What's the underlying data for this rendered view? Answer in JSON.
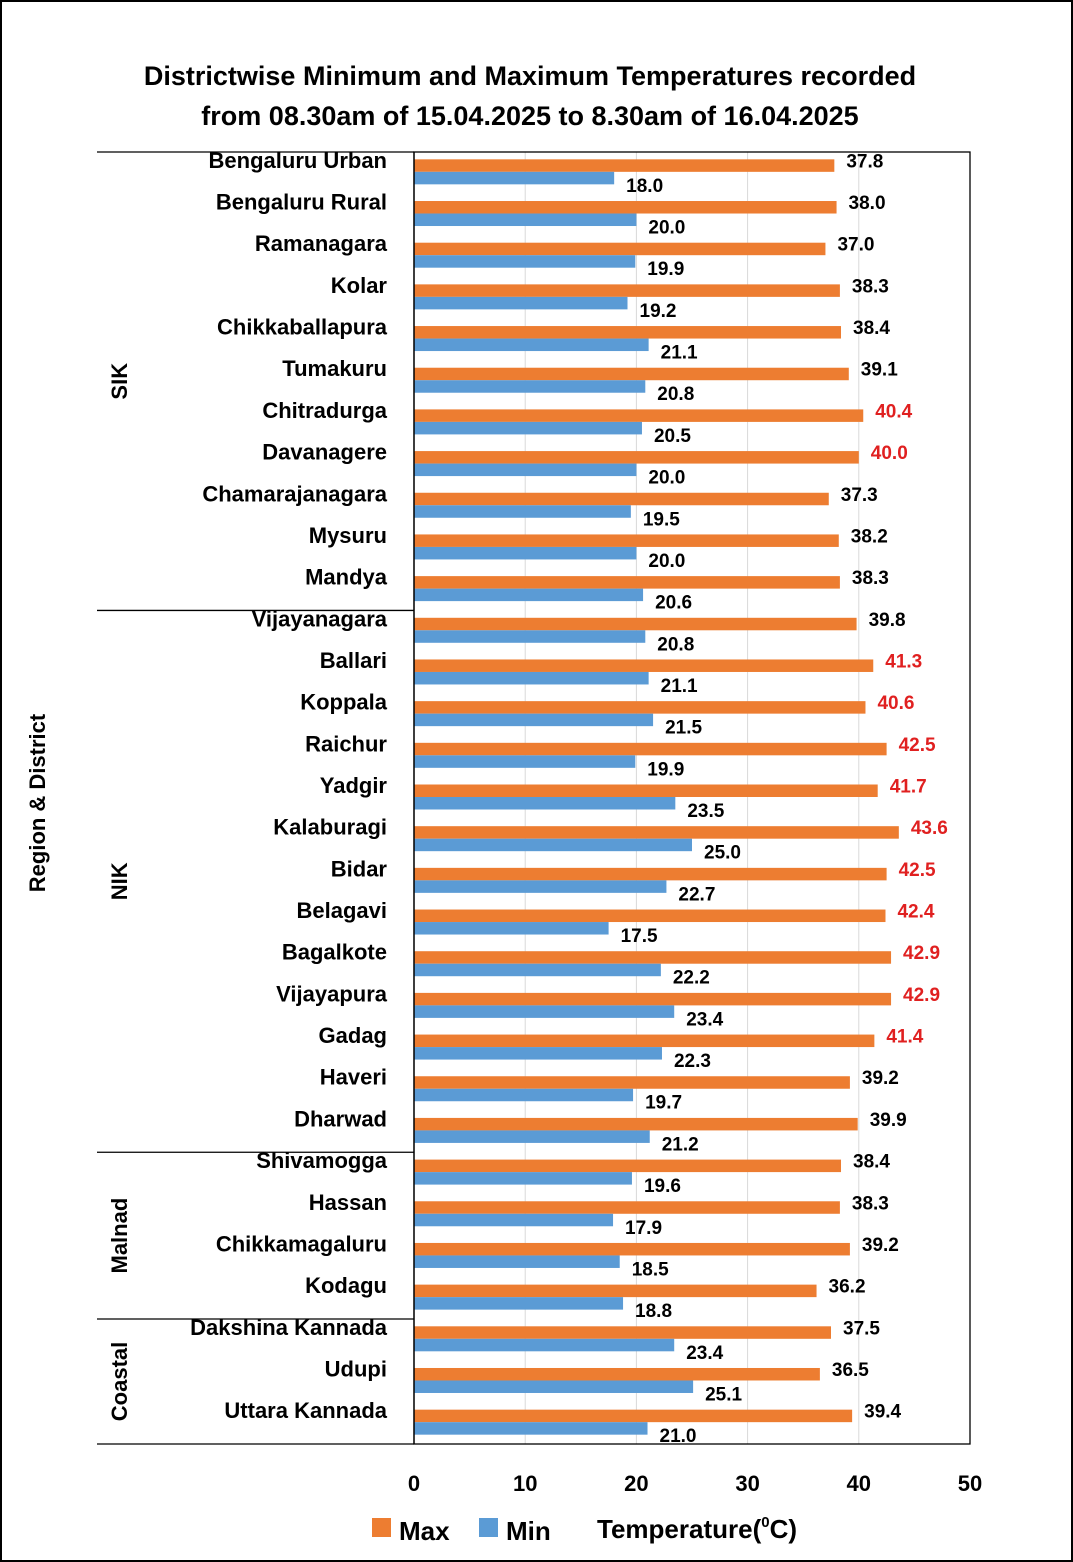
{
  "chart_data": {
    "type": "bar",
    "orientation": "horizontal",
    "title_line1": "Districtwise Minimum and Maximum Temperatures recorded",
    "title_line2": "from 08.30am of 15.04.2025 to 8.30am of 16.04.2025",
    "xlabel": "Temperature(⁰C)",
    "xlabel_main": "Temperature(",
    "xlabel_sup": "0",
    "xlabel_end": "C)",
    "ylabel": "Region & District",
    "xlim": [
      0,
      50
    ],
    "xticks": [
      0,
      10,
      20,
      30,
      40,
      50
    ],
    "grid": "vertical",
    "legend": {
      "placement": "bottom-left",
      "entries": [
        "Max",
        "Min"
      ]
    },
    "highlight_threshold": 40.0,
    "colors": {
      "max": "#ED7D31",
      "min": "#5B9BD5",
      "label_normal": "#000000",
      "label_highlight": "#E02020",
      "grid": "#D9D9D9"
    },
    "regions": [
      {
        "name": "SIK",
        "start": 0,
        "count": 11
      },
      {
        "name": "NIK",
        "start": 11,
        "count": 13
      },
      {
        "name": "Malnad",
        "start": 24,
        "count": 4
      },
      {
        "name": "Coastal",
        "start": 28,
        "count": 3
      }
    ],
    "categories": [
      "Bengaluru Urban",
      "Bengaluru Rural",
      "Ramanagara",
      "Kolar",
      "Chikkaballapura",
      "Tumakuru",
      "Chitradurga",
      "Davanagere",
      "Chamarajanagara",
      "Mysuru",
      "Mandya",
      "Vijayanagara",
      "Ballari",
      "Koppala",
      "Raichur",
      "Yadgir",
      "Kalaburagi",
      "Bidar",
      "Belagavi",
      "Bagalkote",
      "Vijayapura",
      "Gadag",
      "Haveri",
      "Dharwad",
      "Shivamogga",
      "Hassan",
      "Chikkamagaluru",
      "Kodagu",
      "Dakshina Kannada",
      "Udupi",
      "Uttara Kannada"
    ],
    "series": [
      {
        "name": "Max",
        "values": [
          37.8,
          38.0,
          37.0,
          38.3,
          38.4,
          39.1,
          40.4,
          40.0,
          37.3,
          38.2,
          38.3,
          39.8,
          41.3,
          40.6,
          42.5,
          41.7,
          43.6,
          42.5,
          42.4,
          42.9,
          42.9,
          41.4,
          39.2,
          39.9,
          38.4,
          38.3,
          39.2,
          36.2,
          37.5,
          36.5,
          39.4
        ]
      },
      {
        "name": "Min",
        "values": [
          18.0,
          20.0,
          19.9,
          19.2,
          21.1,
          20.8,
          20.5,
          20.0,
          19.5,
          20.0,
          20.6,
          20.8,
          21.1,
          21.5,
          19.9,
          23.5,
          25.0,
          22.7,
          17.5,
          22.2,
          23.4,
          22.3,
          19.7,
          21.2,
          19.6,
          17.9,
          18.5,
          18.8,
          23.4,
          25.1,
          21.0
        ]
      }
    ]
  }
}
